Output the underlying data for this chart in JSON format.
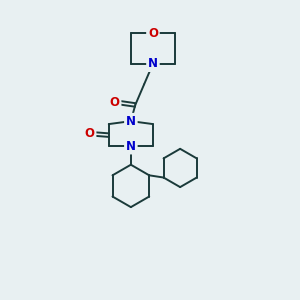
{
  "bg_color": "#e8f0f2",
  "line_color": "#1a3a3a",
  "atom_O_color": "#cc0000",
  "atom_N_color": "#0000cc",
  "line_width": 1.4,
  "font_size": 8.5,
  "fig_size": [
    3.0,
    3.0
  ],
  "dpi": 100,
  "xlim": [
    0,
    10
  ],
  "ylim": [
    0,
    10
  ]
}
